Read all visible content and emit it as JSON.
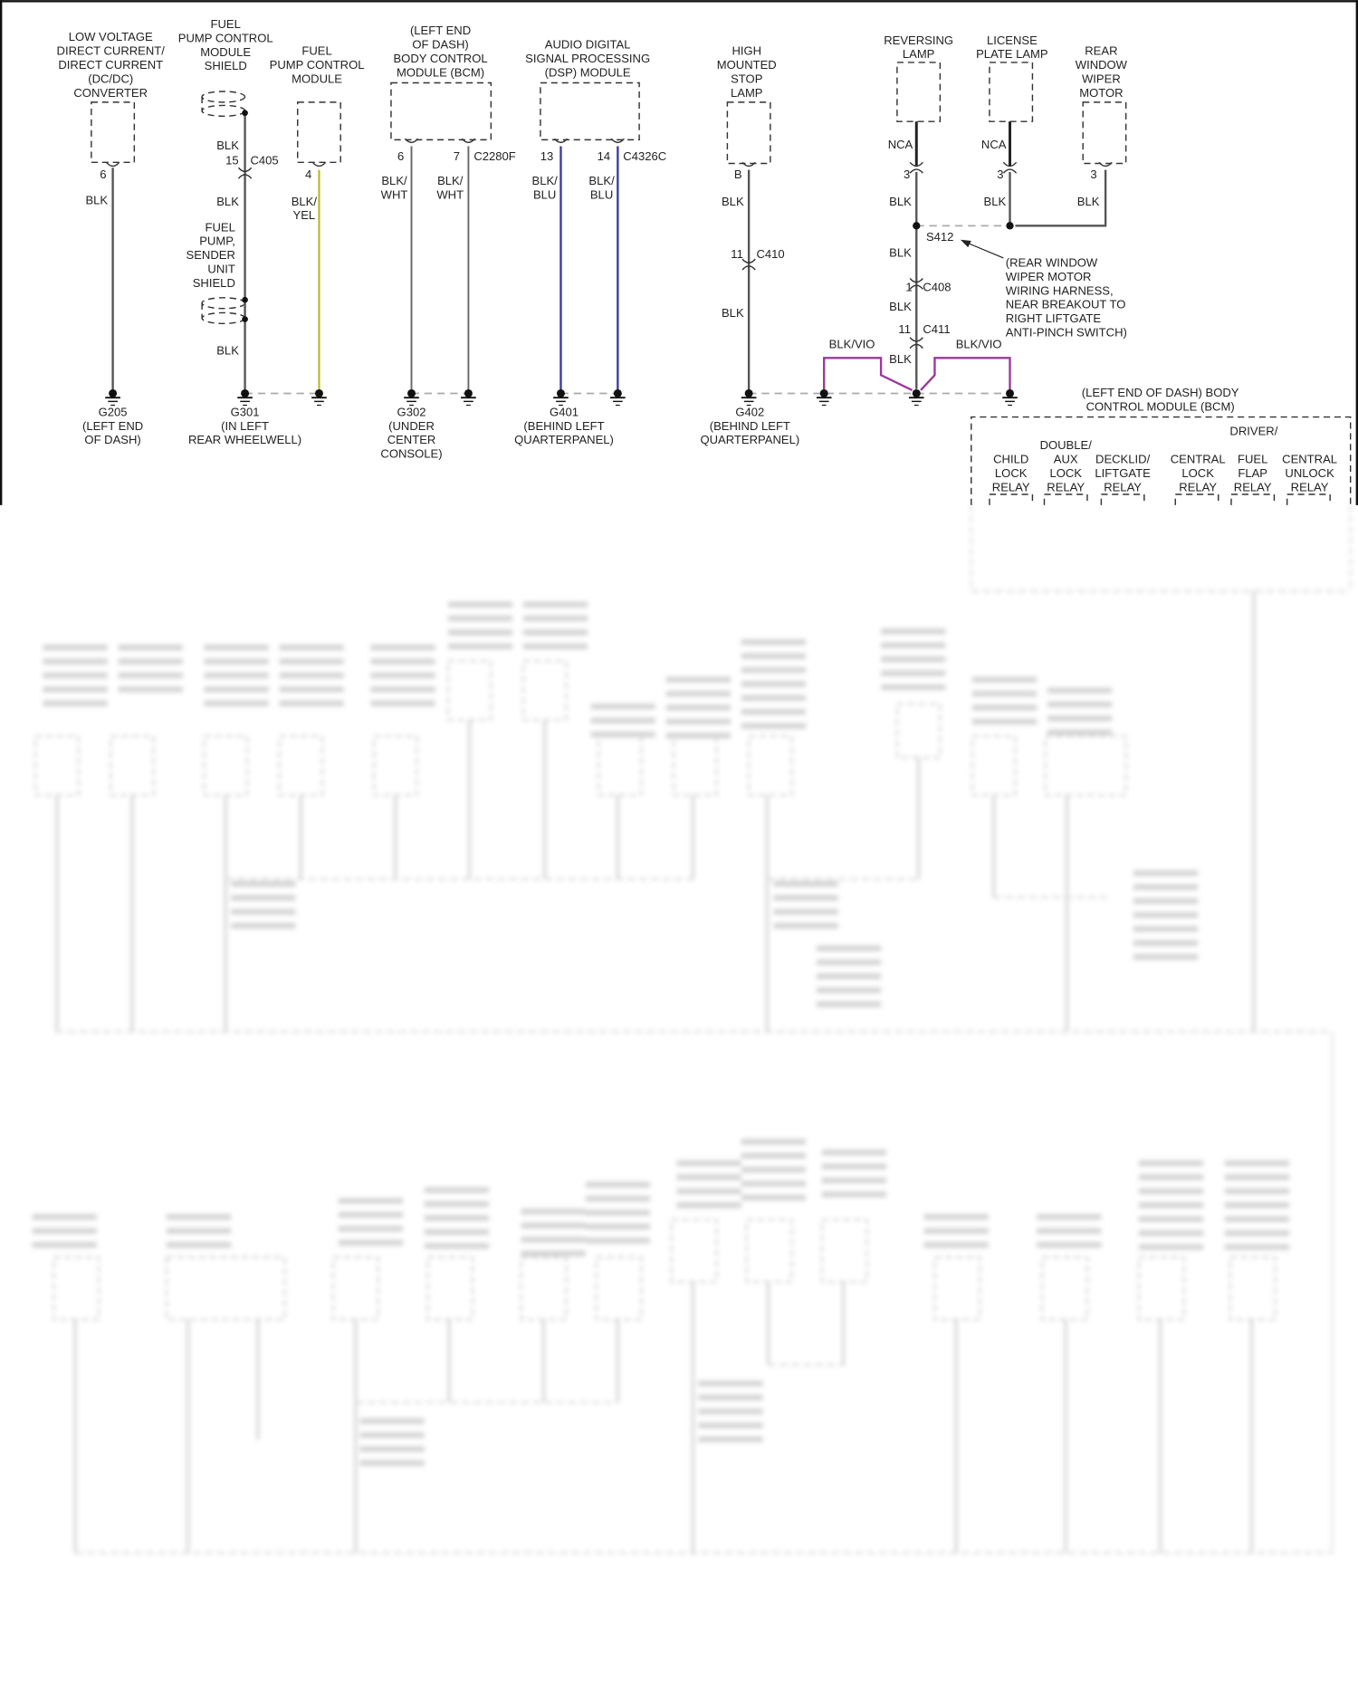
{
  "wire_colors": {
    "BLK": "#555555",
    "BLK/YEL": "#b8b820",
    "BLK/WHT": "#666666",
    "BLK/BLU": "#3c3c9c",
    "BLK/VIO": "#9a3a9a",
    "NCA": "#222222"
  },
  "components": {
    "dcdc": {
      "label": [
        "LOW VOLTAGE",
        "DIRECT CURRENT/",
        "DIRECT CURRENT",
        "(DC/DC)",
        "CONVERTER"
      ],
      "pin": "6",
      "wire": "BLK"
    },
    "fpcm_shield": {
      "label": [
        "FUEL",
        "PUMP CONTROL",
        "MODULE",
        "SHIELD"
      ],
      "wire": "BLK",
      "pin": "15",
      "connector": "C405",
      "wire2": "BLK",
      "wire3": "BLK"
    },
    "sender_shield": {
      "label": [
        "FUEL",
        "PUMP,",
        "SENDER",
        "UNIT",
        "SHIELD"
      ]
    },
    "fpcm": {
      "label": [
        "FUEL",
        "PUMP CONTROL",
        "MODULE"
      ],
      "pin": "4",
      "wire": [
        "BLK/",
        "YEL"
      ]
    },
    "bcm": {
      "label": [
        "(LEFT END",
        "OF DASH)",
        "BODY CONTROL",
        "MODULE (BCM)"
      ],
      "pins": [
        "6",
        "7"
      ],
      "connector": "C2280F",
      "wire_a": [
        "BLK/",
        "WHT"
      ],
      "wire_b": [
        "BLK/",
        "WHT"
      ]
    },
    "dsp": {
      "label": [
        "AUDIO DIGITAL",
        "SIGNAL PROCESSING",
        "(DSP) MODULE"
      ],
      "pins": [
        "13",
        "14"
      ],
      "connector": "C4326C",
      "wire_a": [
        "BLK/",
        "BLU"
      ],
      "wire_b": [
        "BLK/",
        "BLU"
      ]
    },
    "hmsl": {
      "label": [
        "HIGH",
        "MOUNTED",
        "STOP",
        "LAMP"
      ],
      "pin": "B",
      "wire": "BLK",
      "pin2": "11",
      "connector": "C410",
      "wire2": "BLK"
    },
    "reversing": {
      "label": [
        "REVERSING",
        "LAMP"
      ],
      "nca": "NCA",
      "pin": "3",
      "wire": "BLK"
    },
    "license": {
      "label": [
        "LICENSE",
        "PLATE LAMP"
      ],
      "nca": "NCA",
      "pin": "3",
      "wire": "BLK"
    },
    "wiper": {
      "label": [
        "REAR",
        "WINDOW",
        "WIPER",
        "MOTOR"
      ],
      "pin": "3",
      "wire": "BLK"
    },
    "splice": {
      "id": "S412",
      "wire": "BLK",
      "c408_pin": "1",
      "c408": "C408",
      "wire2": "BLK",
      "c411_pin": "11",
      "c411": "C411",
      "wire3": "BLK"
    },
    "splice_note": [
      "(REAR WINDOW",
      "WIPER MOTOR",
      "WIRING HARNESS,",
      "NEAR BREAKOUT TO",
      "RIGHT LIFTGATE",
      "ANTI-PINCH SWITCH)"
    ],
    "violet": [
      "BLK/VIO",
      "BLK/VIO"
    ]
  },
  "grounds": {
    "g205": [
      "G205",
      "(LEFT END",
      "OF DASH)"
    ],
    "g301": [
      "G301",
      "(IN LEFT",
      "REAR WHEELWELL)"
    ],
    "g302": [
      "G302",
      "(UNDER",
      "CENTER",
      "CONSOLE)"
    ],
    "g401": [
      "G401",
      "(BEHIND LEFT",
      "QUARTERPANEL)"
    ],
    "g402": [
      "G402",
      "(BEHIND LEFT",
      "QUARTERPANEL)"
    ]
  },
  "bcm_relays": {
    "title": [
      "(LEFT END OF DASH) BODY",
      "CONTROL MODULE (BCM)"
    ],
    "driver": "DRIVER/",
    "child": [
      "CHILD",
      "LOCK",
      "RELAY"
    ],
    "double": [
      "DOUBLE/",
      "AUX",
      "LOCK",
      "RELAY"
    ],
    "decklid": [
      "DECKLID/",
      "LIFTGATE",
      "RELAY"
    ],
    "central": [
      "CENTRAL",
      "LOCK",
      "RELAY"
    ],
    "fuel": [
      "FUEL",
      "FLAP",
      "RELAY"
    ],
    "unlock": [
      "CENTRAL",
      "UNLOCK",
      "RELAY"
    ]
  }
}
